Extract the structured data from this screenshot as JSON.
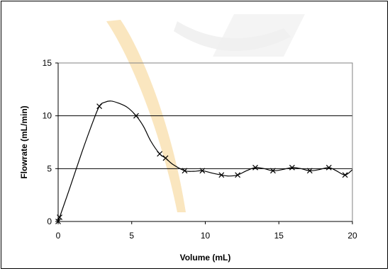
{
  "chart_data": {
    "type": "line",
    "xlabel": "Volume (mL)",
    "ylabel": "Flowrate (mL/min)",
    "xlim": [
      0,
      20
    ],
    "ylim": [
      0,
      15
    ],
    "xticks": [
      0,
      5,
      10,
      15,
      20
    ],
    "yticks": [
      0,
      5,
      10,
      15
    ],
    "grid": "horizontal",
    "colors": {
      "line": "#000000",
      "grid": "#000000",
      "watermark": "#f6c86a"
    },
    "series": [
      {
        "marker": "x",
        "points": [
          [
            0,
            0
          ],
          [
            0.1,
            0.4
          ],
          [
            2.8,
            10.9
          ],
          [
            5.3,
            10.0
          ],
          [
            6.9,
            6.4
          ],
          [
            7.3,
            6.0
          ],
          [
            8.6,
            4.8
          ],
          [
            9.8,
            4.8
          ],
          [
            11.1,
            4.4
          ],
          [
            12.2,
            4.4
          ],
          [
            13.4,
            5.1
          ],
          [
            14.6,
            4.8
          ],
          [
            15.9,
            5.1
          ],
          [
            17.1,
            4.8
          ],
          [
            18.4,
            5.1
          ],
          [
            19.5,
            4.4
          ]
        ],
        "curve": [
          [
            0,
            0
          ],
          [
            0.1,
            0.4
          ],
          [
            0.8,
            3.2
          ],
          [
            1.6,
            6.5
          ],
          [
            2.3,
            9.2
          ],
          [
            2.8,
            10.9
          ],
          [
            3.2,
            11.3
          ],
          [
            3.6,
            11.4
          ],
          [
            4.1,
            11.2
          ],
          [
            4.7,
            10.8
          ],
          [
            5.3,
            10.0
          ],
          [
            5.8,
            9.0
          ],
          [
            6.3,
            7.6
          ],
          [
            6.9,
            6.4
          ],
          [
            7.3,
            6.0
          ],
          [
            7.8,
            5.4
          ],
          [
            8.6,
            4.8
          ],
          [
            9.2,
            4.75
          ],
          [
            9.8,
            4.8
          ],
          [
            10.4,
            4.6
          ],
          [
            11.1,
            4.4
          ],
          [
            11.6,
            4.3
          ],
          [
            12.2,
            4.4
          ],
          [
            12.8,
            4.8
          ],
          [
            13.4,
            5.1
          ],
          [
            14.0,
            5.0
          ],
          [
            14.6,
            4.8
          ],
          [
            15.2,
            4.9
          ],
          [
            15.9,
            5.1
          ],
          [
            16.5,
            5.0
          ],
          [
            17.1,
            4.8
          ],
          [
            17.7,
            4.9
          ],
          [
            18.4,
            5.1
          ],
          [
            18.9,
            4.8
          ],
          [
            19.5,
            4.4
          ],
          [
            20.0,
            4.9
          ]
        ]
      }
    ]
  }
}
